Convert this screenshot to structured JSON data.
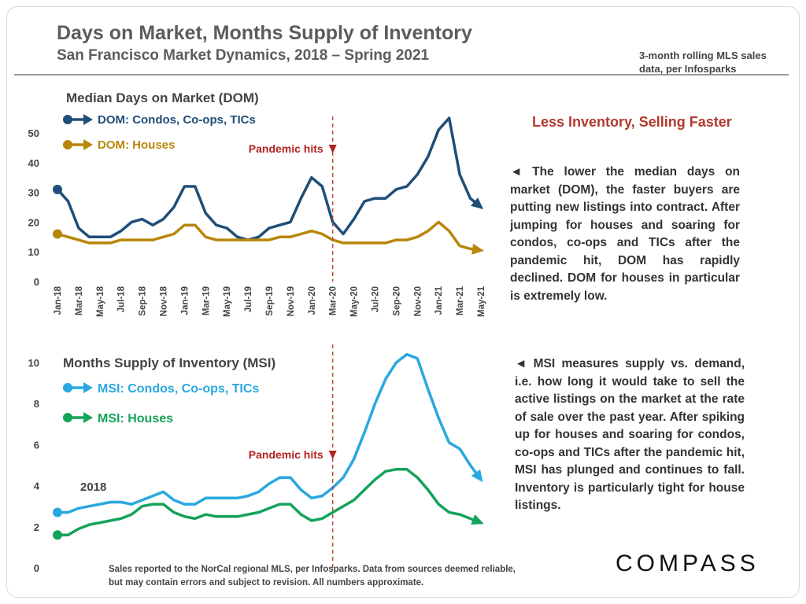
{
  "header": {
    "title": "Days on Market, Months Supply of Inventory",
    "subtitle": "San Francisco Market Dynamics, 2018 – Spring 2021",
    "source_line1": "3-month rolling MLS sales",
    "source_line2": "data, per Infosparks"
  },
  "side": {
    "heading": "Less Inventory, Selling Faster",
    "dom_text": "◄ The lower the median days on market (DOM), the faster buyers are putting new listings into contract. After jumping for houses and soaring for condos, co-ops and TICs after the pandemic hit, DOM has rapidly declined. DOM for houses in particular is extremely low.",
    "msi_text": "◄ MSI measures supply vs. demand, i.e. how long it would take to sell the active listings on the market at the rate of sale over the past year. After spiking up for houses and soaring for condos, co-ops and TICs after the pandemic hit, MSI has plunged and continues to fall. Inventory is particularly tight for house listings."
  },
  "footer": {
    "line1": "Sales reported to the NorCal regional MLS, per Infosparks. Data from sources deemed reliable,",
    "line2": "but may contain errors and subject to revision. All numbers approximate.",
    "logo": "COMPASS"
  },
  "pandemic_label": "Pandemic hits",
  "chart_data": [
    {
      "type": "line",
      "title": "Median Days on Market (DOM)",
      "x": [
        "Jan-18",
        "Feb-18",
        "Mar-18",
        "Apr-18",
        "May-18",
        "Jun-18",
        "Jul-18",
        "Aug-18",
        "Sep-18",
        "Oct-18",
        "Nov-18",
        "Dec-18",
        "Jan-19",
        "Feb-19",
        "Mar-19",
        "Apr-19",
        "May-19",
        "Jun-19",
        "Jul-19",
        "Aug-19",
        "Sep-19",
        "Oct-19",
        "Nov-19",
        "Dec-19",
        "Jan-20",
        "Feb-20",
        "Mar-20",
        "Apr-20",
        "May-20",
        "Jun-20",
        "Jul-20",
        "Aug-20",
        "Sep-20",
        "Oct-20",
        "Nov-20",
        "Dec-20",
        "Jan-21",
        "Feb-21",
        "Mar-21",
        "Apr-21",
        "May-21"
      ],
      "x_tick_labels": [
        "Jan-18",
        "Mar-18",
        "May-18",
        "Jul-18",
        "Sep-18",
        "Nov-18",
        "Jan-19",
        "Mar-19",
        "May-19",
        "Jul-19",
        "Sep-19",
        "Nov-19",
        "Jan-20",
        "Mar-20",
        "May-20",
        "Jul-20",
        "Sep-20",
        "Nov-20",
        "Jan-21",
        "Mar-21",
        "May-21"
      ],
      "ylim": [
        0,
        55
      ],
      "yticks": [
        0,
        10,
        20,
        30,
        40,
        50
      ],
      "series": [
        {
          "name": "DOM: Condos, Co-ops, TICs",
          "color": "#1f4e79",
          "values": [
            31,
            27,
            18,
            15,
            15,
            15,
            17,
            20,
            21,
            19,
            21,
            25,
            32,
            32,
            23,
            19,
            18,
            15,
            14,
            15,
            18,
            19,
            20,
            28,
            35,
            32,
            20,
            16,
            21,
            27,
            28,
            28,
            31,
            32,
            36,
            42,
            51,
            55,
            36,
            28,
            25
          ]
        },
        {
          "name": "DOM: Houses",
          "color": "#b8860b",
          "values": [
            16,
            15,
            14,
            13,
            13,
            13,
            14,
            14,
            14,
            14,
            15,
            16,
            19,
            19,
            15,
            14,
            14,
            14,
            14,
            14,
            14,
            15,
            15,
            16,
            17,
            16,
            14,
            13,
            13,
            13,
            13,
            13,
            14,
            14,
            15,
            17,
            20,
            17,
            12,
            11,
            10.5
          ]
        }
      ],
      "annotation": {
        "text": "Pandemic hits",
        "x": "Mar-20"
      }
    },
    {
      "type": "line",
      "title": "Months Supply of Inventory (MSI)",
      "x": [
        "Jan-18",
        "Feb-18",
        "Mar-18",
        "Apr-18",
        "May-18",
        "Jun-18",
        "Jul-18",
        "Aug-18",
        "Sep-18",
        "Oct-18",
        "Nov-18",
        "Dec-18",
        "Jan-19",
        "Feb-19",
        "Mar-19",
        "Apr-19",
        "May-19",
        "Jun-19",
        "Jul-19",
        "Aug-19",
        "Sep-19",
        "Oct-19",
        "Nov-19",
        "Dec-19",
        "Jan-20",
        "Feb-20",
        "Mar-20",
        "Apr-20",
        "May-20",
        "Jun-20",
        "Jul-20",
        "Aug-20",
        "Sep-20",
        "Oct-20",
        "Nov-20",
        "Dec-20",
        "Jan-21",
        "Feb-21",
        "Mar-21",
        "Apr-21",
        "May-21"
      ],
      "ylim": [
        0,
        10.5
      ],
      "yticks": [
        0,
        2,
        4,
        6,
        8,
        10
      ],
      "series": [
        {
          "name": "MSI: Condos, Co-ops, TICs",
          "color": "#29a8e0",
          "values": [
            2.7,
            2.7,
            2.9,
            3.0,
            3.1,
            3.2,
            3.2,
            3.1,
            3.3,
            3.5,
            3.7,
            3.3,
            3.1,
            3.1,
            3.4,
            3.4,
            3.4,
            3.4,
            3.5,
            3.7,
            4.1,
            4.4,
            4.4,
            3.8,
            3.4,
            3.5,
            3.9,
            4.4,
            5.3,
            6.6,
            8.0,
            9.2,
            10.0,
            10.4,
            10.2,
            8.7,
            7.3,
            6.1,
            5.8,
            5.0,
            4.3
          ]
        },
        {
          "name": "MSI: Houses",
          "color": "#14a35a",
          "values": [
            1.6,
            1.6,
            1.9,
            2.1,
            2.2,
            2.3,
            2.4,
            2.6,
            3.0,
            3.1,
            3.1,
            2.7,
            2.5,
            2.4,
            2.6,
            2.5,
            2.5,
            2.5,
            2.6,
            2.7,
            2.9,
            3.1,
            3.1,
            2.6,
            2.3,
            2.4,
            2.7,
            3.0,
            3.3,
            3.8,
            4.3,
            4.7,
            4.8,
            4.8,
            4.4,
            3.8,
            3.1,
            2.7,
            2.6,
            2.4,
            2.2
          ]
        }
      ],
      "annotation": {
        "text": "Pandemic hits",
        "x": "Mar-20"
      },
      "series_label": "2018"
    }
  ]
}
